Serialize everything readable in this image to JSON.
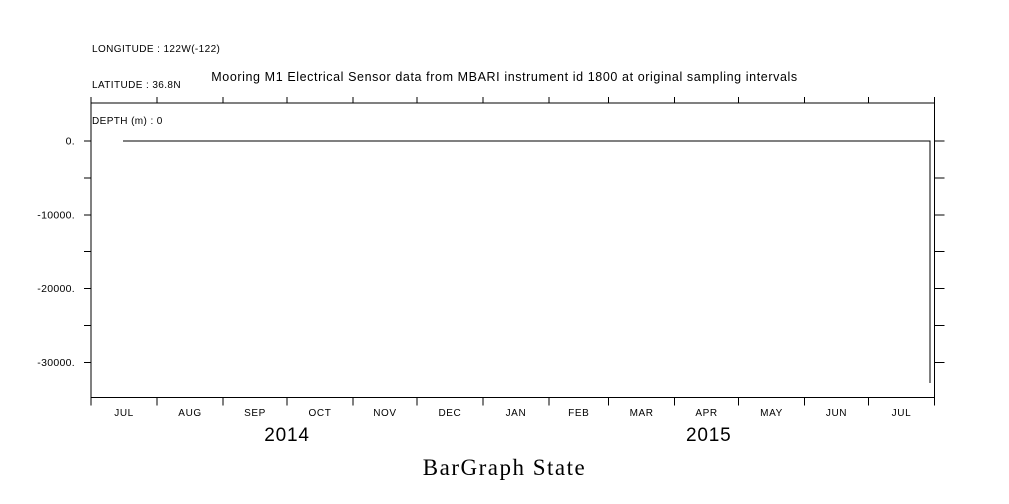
{
  "header": {
    "lines": [
      "LONGITUDE : 122W(-122)",
      "LATITUDE : 36.8N",
      "DEPTH (m) : 0"
    ]
  },
  "chart_data": {
    "type": "line",
    "title": "Mooring M1 Electrical Sensor data from MBARI instrument id 1800 at original sampling intervals",
    "xlabel": "",
    "ylabel": "",
    "x_domain": [
      "2014-07-01",
      "2015-08-01"
    ],
    "x_month_labels": [
      "JUL",
      "AUG",
      "SEP",
      "OCT",
      "NOV",
      "DEC",
      "JAN",
      "FEB",
      "MAR",
      "APR",
      "MAY",
      "JUN",
      "JUL"
    ],
    "year_labels": [
      {
        "text": "2014",
        "span": [
          "2014-07-01",
          "2015-01-01"
        ]
      },
      {
        "text": "2015",
        "span": [
          "2015-01-01",
          "2015-08-01"
        ]
      }
    ],
    "ylim": [
      -34750,
      5150
    ],
    "y_tick_min": -30000,
    "y_tick_max": 0,
    "y_minor_step": 5000,
    "y_major_step": 10000,
    "y_tick_labels": [
      "0.",
      "-10000.",
      "-20000.",
      "-30000."
    ],
    "grid": false,
    "legend": false,
    "axis_color": "#000000",
    "line_color": "#000000",
    "background": "#ffffff",
    "series": [
      {
        "name": "BarGraph State",
        "points": [
          [
            "2014-07-16",
            0
          ],
          [
            "2015-07-30",
            0
          ],
          [
            "2015-07-30",
            -32800
          ]
        ]
      }
    ]
  },
  "footer_label": "BarGraph State"
}
